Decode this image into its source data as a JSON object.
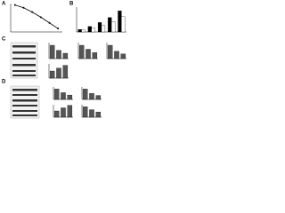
{
  "panel_labels": [
    "A",
    "B",
    "C",
    "D"
  ],
  "chart_data": [
    {
      "type": "line",
      "categories": [
        null,
        null,
        null,
        null,
        null,
        null
      ],
      "values": [
        95,
        85,
        70,
        52,
        32,
        12
      ],
      "color": "#000000",
      "ylim": [
        0,
        100
      ]
    },
    {
      "type": "bar",
      "categories": [
        null,
        null,
        null,
        null,
        null
      ],
      "ylim": [
        0,
        100
      ],
      "series": [
        {
          "color": "#000000",
          "values": [
            10,
            22,
            38,
            58,
            85
          ]
        },
        {
          "color": "#ffffff",
          "values": [
            8,
            15,
            26,
            42,
            62
          ]
        }
      ]
    },
    {
      "type": "bar",
      "categories": [
        null,
        null,
        null
      ],
      "values": [
        100,
        62,
        40
      ],
      "color": "#555555",
      "ylim": [
        0,
        120
      ]
    },
    {
      "type": "bar",
      "categories": [
        null,
        null,
        null
      ],
      "values": [
        100,
        70,
        45
      ],
      "color": "#555555",
      "ylim": [
        0,
        120
      ]
    },
    {
      "type": "bar",
      "categories": [
        null,
        null,
        null
      ],
      "values": [
        100,
        55,
        35
      ],
      "color": "#555555",
      "ylim": [
        0,
        120
      ]
    },
    {
      "type": "bar",
      "categories": [
        null,
        null,
        null
      ],
      "values": [
        100,
        140,
        180
      ],
      "color": "#555555",
      "ylim": [
        0,
        200
      ]
    },
    {
      "type": "bar",
      "categories": [
        null,
        null,
        null
      ],
      "values": [
        100,
        65,
        42
      ],
      "color": "#555555",
      "ylim": [
        0,
        120
      ]
    },
    {
      "type": "bar",
      "categories": [
        null,
        null,
        null
      ],
      "values": [
        100,
        58,
        38
      ],
      "color": "#555555",
      "ylim": [
        0,
        120
      ]
    },
    {
      "type": "bar",
      "categories": [
        null,
        null,
        null
      ],
      "values": [
        100,
        150,
        190
      ],
      "color": "#555555",
      "ylim": [
        0,
        200
      ]
    },
    {
      "type": "bar",
      "categories": [
        null,
        null,
        null
      ],
      "values": [
        100,
        72,
        50
      ],
      "color": "#555555",
      "ylim": [
        0,
        120
      ]
    }
  ]
}
